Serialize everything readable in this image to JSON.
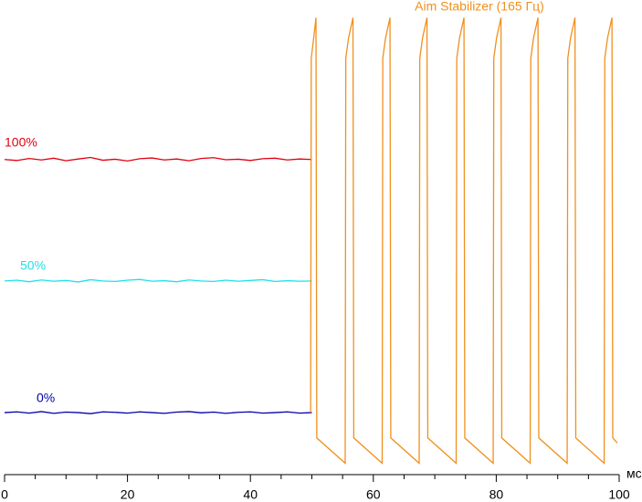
{
  "chart_data": {
    "type": "line",
    "x_label": "мс",
    "xlim": [
      0,
      100
    ],
    "ylim": [
      -24.5,
      163
    ],
    "xticks": [
      0,
      20,
      40,
      60,
      80,
      100
    ],
    "xticks_minor": [
      5,
      10,
      15,
      25,
      30,
      35,
      45,
      50,
      55,
      65,
      70,
      75,
      85,
      90,
      95
    ],
    "series": [
      {
        "name": "100%",
        "color": "#e00010",
        "x": [
          0,
          2,
          4,
          6,
          8,
          10,
          12,
          14,
          16,
          18,
          20,
          22,
          24,
          26,
          28,
          30,
          32,
          34,
          36,
          38,
          40,
          42,
          44,
          46,
          48,
          50
        ],
        "values": [
          100,
          99.6,
          100.4,
          99.8,
          100.5,
          99.5,
          100.2,
          100.8,
          99.7,
          100.1,
          99.4,
          100.3,
          100.6,
          99.8,
          100.2,
          99.5,
          100.4,
          100.7,
          99.9,
          100.1,
          99.6,
          100.3,
          100.5,
          99.8,
          100.2,
          100
        ]
      },
      {
        "name": "50%",
        "color": "#20e0e8",
        "x": [
          0,
          2,
          4,
          6,
          8,
          10,
          12,
          14,
          16,
          18,
          20,
          22,
          24,
          26,
          28,
          30,
          32,
          34,
          36,
          38,
          40,
          42,
          44,
          46,
          48,
          50
        ],
        "values": [
          52,
          52.3,
          51.7,
          52.4,
          51.9,
          52.2,
          51.6,
          52.5,
          52,
          51.8,
          52.3,
          52.6,
          51.9,
          52.1,
          51.7,
          52.4,
          52,
          51.8,
          52.3,
          51.9,
          52.2,
          52.5,
          51.8,
          52.1,
          51.9,
          52
        ]
      },
      {
        "name": "0%",
        "color": "#0000a8",
        "x": [
          0,
          2,
          4,
          6,
          8,
          10,
          12,
          14,
          16,
          18,
          20,
          22,
          24,
          26,
          28,
          30,
          32,
          34,
          36,
          38,
          40,
          42,
          44,
          46,
          48,
          50
        ],
        "values": [
          0,
          0.3,
          -0.2,
          0.4,
          -0.3,
          0.2,
          0,
          -0.4,
          0.3,
          0.1,
          -0.2,
          0.3,
          0,
          -0.3,
          0.2,
          0.4,
          -0.1,
          0.2,
          -0.3,
          0.1,
          0.3,
          -0.2,
          0,
          0.3,
          -0.2,
          0
        ]
      },
      {
        "name": "Aim Stabilizer (165 Гц)",
        "color": "#f0901e",
        "x": [
          49.8,
          49.9,
          50.3,
          50.67,
          50.8,
          55.42,
          55.52,
          55.97,
          56.69,
          56.82,
          61.44,
          61.54,
          61.99,
          62.71,
          62.84,
          67.46,
          67.56,
          68.01,
          68.73,
          68.86,
          73.48,
          73.58,
          74.03,
          74.75,
          74.88,
          79.5,
          79.6,
          80.05,
          80.77,
          80.9,
          85.52,
          85.62,
          86.07,
          86.79,
          86.92,
          91.54,
          91.64,
          92.09,
          92.81,
          92.94,
          97.56,
          97.66,
          98.11,
          98.83,
          98.96,
          99.7
        ],
        "values": [
          0,
          140,
          148,
          156,
          -10,
          -20,
          140,
          148,
          156,
          -10,
          -20,
          140,
          148,
          156,
          -10,
          -20,
          140,
          148,
          156,
          -10,
          -20,
          140,
          148,
          156,
          -10,
          -20,
          140,
          148,
          156,
          -10,
          -20,
          140,
          148,
          156,
          -10,
          -20,
          140,
          148,
          156,
          -10,
          -20,
          140,
          148,
          156,
          -10,
          -12
        ]
      }
    ]
  }
}
